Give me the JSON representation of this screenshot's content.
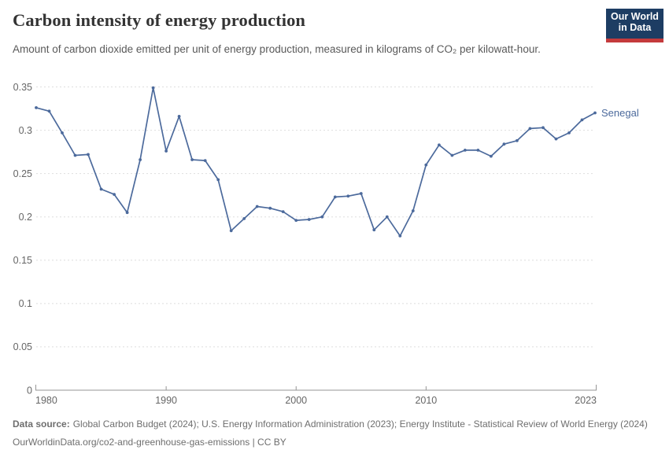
{
  "header": {
    "title": "Carbon intensity of energy production",
    "subtitle": "Amount of carbon dioxide emitted per unit of energy production, measured in kilograms of CO₂ per kilowatt-hour.",
    "logo_line1": "Our World",
    "logo_line2": "in Data"
  },
  "chart_data": {
    "type": "line",
    "title": "Carbon intensity of energy production",
    "x": [
      1980,
      1981,
      1982,
      1983,
      1984,
      1985,
      1986,
      1987,
      1988,
      1989,
      1990,
      1991,
      1992,
      1993,
      1994,
      1995,
      1996,
      1997,
      1998,
      1999,
      2000,
      2001,
      2002,
      2003,
      2004,
      2005,
      2006,
      2007,
      2008,
      2009,
      2010,
      2011,
      2012,
      2013,
      2014,
      2015,
      2016,
      2017,
      2018,
      2019,
      2020,
      2021,
      2022,
      2023
    ],
    "series": [
      {
        "name": "Senegal",
        "color": "#4c6a9c",
        "values": [
          0.326,
          0.322,
          0.297,
          0.271,
          0.272,
          0.232,
          0.226,
          0.205,
          0.266,
          0.349,
          0.276,
          0.316,
          0.266,
          0.265,
          0.243,
          0.184,
          0.198,
          0.212,
          0.21,
          0.206,
          0.196,
          0.197,
          0.2,
          0.223,
          0.224,
          0.227,
          0.185,
          0.2,
          0.178,
          0.207,
          0.26,
          0.283,
          0.271,
          0.277,
          0.277,
          0.27,
          0.284,
          0.288,
          0.302,
          0.303,
          0.29,
          0.297,
          0.312,
          0.32
        ]
      }
    ],
    "ylim": [
      0,
      0.35
    ],
    "yticks": [
      0,
      0.05,
      0.1,
      0.15,
      0.2,
      0.25,
      0.3,
      0.35
    ],
    "ytick_labels": [
      "0",
      "0.05",
      "0.1",
      "0.15",
      "0.2",
      "0.25",
      "0.3",
      "0.35"
    ],
    "xticks": [
      1980,
      1990,
      2000,
      2010,
      2023
    ],
    "xtick_labels": [
      "1980",
      "1990",
      "2000",
      "2010",
      "2023"
    ],
    "grid": "horizontal dashed",
    "legend": "end-of-line label"
  },
  "footer": {
    "data_source_label": "Data source:",
    "sources": "Global Carbon Budget (2024); U.S. Energy Information Administration (2023); Energy Institute - Statistical Review of World Energy (2024)",
    "citation": "OurWorldinData.org/co2-and-greenhouse-gas-emissions | CC BY"
  },
  "colors": {
    "line": "#4c6a9c",
    "logo_background": "#1d3d63",
    "logo_accent": "#c43a3c",
    "title_text": "#333333",
    "subtitle_text": "#595959",
    "axis_text": "#666666",
    "gridline": "#dedede",
    "footer_text": "#6e6e6e"
  }
}
